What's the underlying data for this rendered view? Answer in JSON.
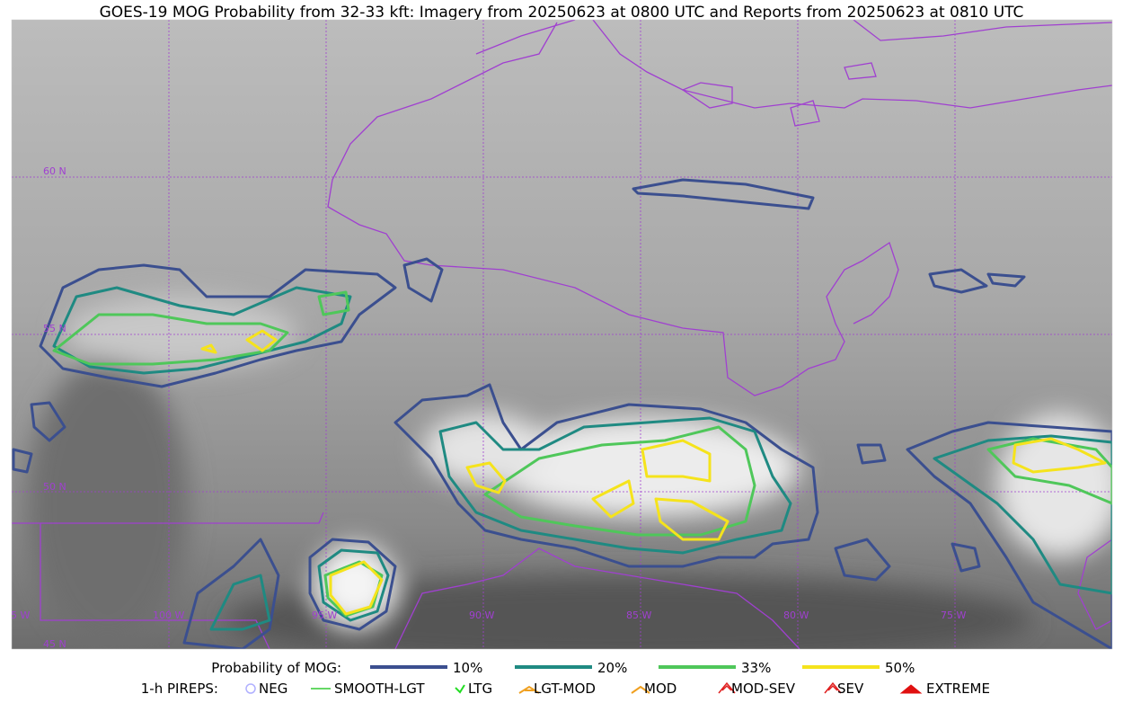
{
  "title": "GOES-19 MOG Probability from 32-33 kft: Imagery from 20250623 at 0800 UTC and Reports from 20250623 at 0810 UTC",
  "map": {
    "lat_labels": [
      "60 N",
      "55 N",
      "50 N",
      "45 N"
    ],
    "lon_labels": [
      "105 W",
      "100 W",
      "95 W",
      "90 W",
      "85 W",
      "80 W",
      "75 W"
    ]
  },
  "legend": {
    "probability_label": "Probability of MOG:",
    "levels": [
      {
        "label": "10%",
        "color": "#3b4f8f"
      },
      {
        "label": "20%",
        "color": "#1f8a82"
      },
      {
        "label": "33%",
        "color": "#4fc75a"
      },
      {
        "label": "50%",
        "color": "#f5e31c"
      }
    ],
    "pireps_label": "1-h PIREPS:",
    "pireps": [
      {
        "label": "NEG",
        "color": "#b0b0ff"
      },
      {
        "label": "SMOOTH-LGT",
        "color": "#33cc33"
      },
      {
        "label": "LTG",
        "color": "#22dd22"
      },
      {
        "label": "LGT-MOD",
        "color": "#f0a020"
      },
      {
        "label": "MOD",
        "color": "#f0a020"
      },
      {
        "label": "MOD-SEV",
        "color": "#e02020"
      },
      {
        "label": "SEV",
        "color": "#e02020"
      },
      {
        "label": "EXTREME",
        "color": "#e01010"
      }
    ]
  }
}
